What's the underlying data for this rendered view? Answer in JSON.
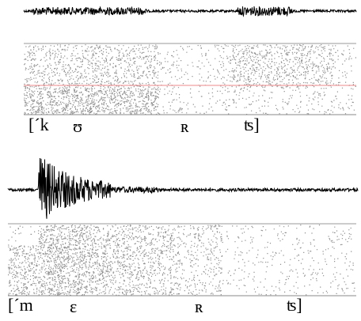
{
  "panels": [
    {
      "transcription": [
        "[´k",
        "ʊ",
        "ʀ",
        "ʦ]"
      ]
    },
    {
      "transcription": [
        "[´m",
        "ɛ",
        "ʀ",
        "ʦ]"
      ]
    }
  ]
}
